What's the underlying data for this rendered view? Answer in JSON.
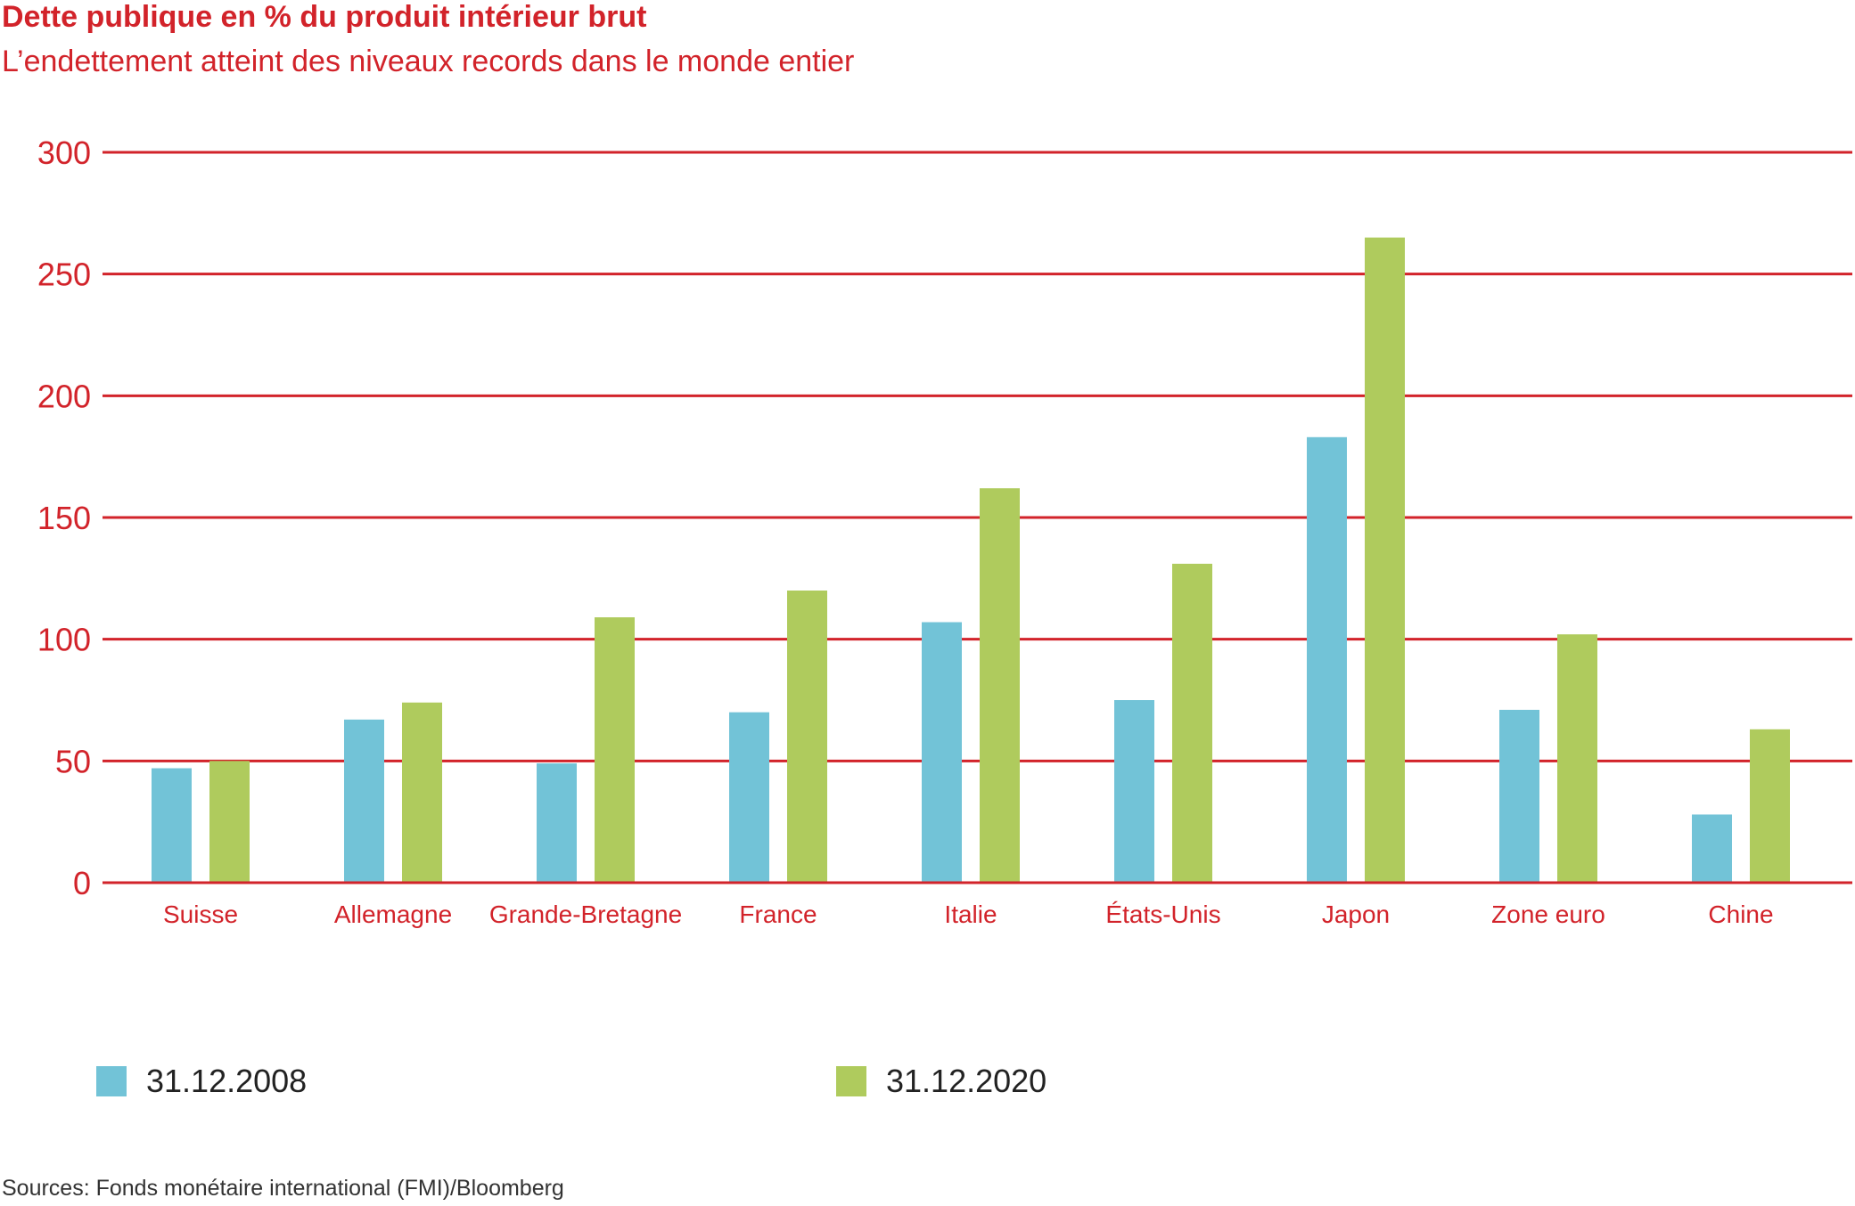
{
  "colors": {
    "accent": "#d2232a",
    "series_2008": "#72c3d7",
    "series_2020": "#afcb5d"
  },
  "chart_data": {
    "type": "bar",
    "title": "Dette publique en % du produit intérieur brut",
    "subtitle": "L’endettement atteint des niveaux records dans le monde entier",
    "categories": [
      "Suisse",
      "Allemagne",
      "Grande-Bretagne",
      "France",
      "Italie",
      "États-Unis",
      "Japon",
      "Zone euro",
      "Chine"
    ],
    "series": [
      {
        "name": "31.12.2008",
        "color": "#72c3d7",
        "values": [
          47,
          67,
          49,
          70,
          107,
          75,
          183,
          71,
          28
        ]
      },
      {
        "name": "31.12.2020",
        "color": "#afcb5d",
        "values": [
          50,
          74,
          109,
          120,
          162,
          131,
          265,
          102,
          63
        ]
      }
    ],
    "yticks": [
      0,
      50,
      100,
      150,
      200,
      250,
      300
    ],
    "ylim": [
      0,
      300
    ],
    "grid": true,
    "legend_position": "bottom"
  },
  "source": "Sources: Fonds monétaire international (FMI)/Bloomberg"
}
